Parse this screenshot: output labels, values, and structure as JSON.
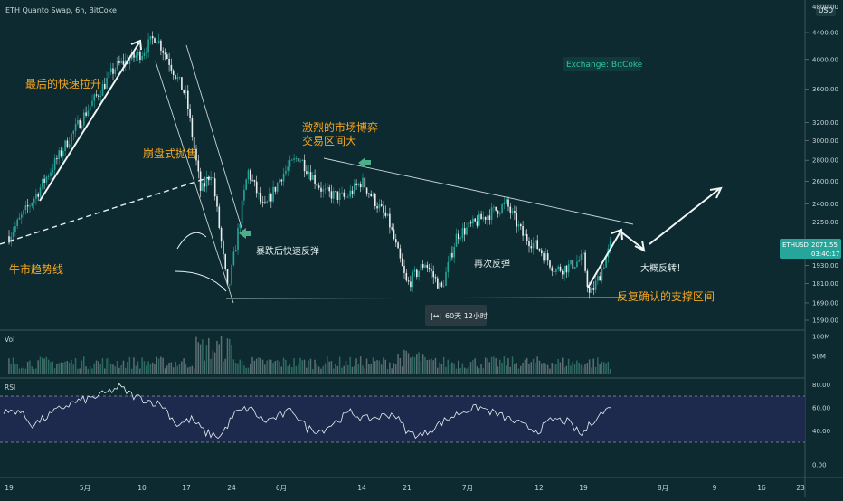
{
  "header": {
    "title": "ETH Quanto Swap, 6h, BitCoke",
    "currency_badge": "USD"
  },
  "watermark": "Exchange: BitCoke",
  "price_tag": {
    "symbol": "ETHUSD",
    "price": "2071.55",
    "countdown": "03:40:17",
    "color": "#26a69a"
  },
  "measure_badge": "60天 12小时",
  "annotations": {
    "final_rally": "最后的快速拉升",
    "crash_sell": "崩盘式抛售",
    "bull_trendline": "牛市趋势线",
    "fierce_game_1": "激烈的市场博弈",
    "fierce_game_2": "交易区间大",
    "rebound_after_crash": "暴跌后快速反弹",
    "rebound_again": "再次反弹",
    "support_zone": "反复确认的支撑区间",
    "likely_reversal": "大概反转！"
  },
  "panels": {
    "volume_label": "Vol",
    "rsi_label": "RSI"
  },
  "colors": {
    "background": "#0c2a2f",
    "up": "#26a69a",
    "down": "#e9eef0",
    "annotation": "#f5a623",
    "rsi_band": "#1d2a4e"
  },
  "chart_data": [
    {
      "type": "candlestick",
      "title": "ETH Quanto Swap, 6h, BitCoke",
      "y_scale": "log",
      "yticks": [
        1590,
        1690,
        1810,
        1930,
        2090,
        2250,
        2400,
        2600,
        2800,
        3000,
        3200,
        3600,
        4000,
        4400
      ],
      "ytick_labels": [
        "1590.00",
        "1690.00",
        "1810.00",
        "1930.00",
        "2090.00",
        "2250.00",
        "2400.00",
        "2600.00",
        "2800.00",
        "3000.00",
        "3200.00",
        "3600.00",
        "4000.00",
        "4400.00"
      ],
      "ytop_label": "4800.00",
      "ylim": [
        1540,
        4800
      ],
      "xticks": [
        "19",
        "5月",
        "10",
        "17",
        "24",
        "6月",
        "14",
        "21",
        "7月",
        "12",
        "19",
        "8月",
        "9",
        "16",
        "23"
      ],
      "last_price": 2071.55,
      "trendlines": [
        {
          "name": "bull trendline",
          "from": [
            "19",
            1960
          ],
          "to": [
            "24",
            2650
          ]
        },
        {
          "name": "descending resistance",
          "from": [
            "6月",
            2840
          ],
          "to": [
            "26",
            2260
          ]
        },
        {
          "name": "support",
          "from": [
            "24",
            1720
          ],
          "to": [
            "26",
            1725
          ]
        }
      ],
      "keypoints": [
        {
          "x": "19",
          "y": 2140
        },
        {
          "x": "25 Apr",
          "y": 2480
        },
        {
          "x": "1 May",
          "y": 2950
        },
        {
          "x": "5月",
          "y": 3300
        },
        {
          "x": "8 May",
          "y": 3900
        },
        {
          "x": "10",
          "y": 4100
        },
        {
          "x": "12 May",
          "y": 4350
        },
        {
          "x": "14 May",
          "y": 4000
        },
        {
          "x": "17",
          "y": 3500
        },
        {
          "x": "19 May",
          "y": 2500
        },
        {
          "x": "21 May",
          "y": 2700
        },
        {
          "x": "23 May",
          "y": 1750
        },
        {
          "x": "26 May",
          "y": 2700
        },
        {
          "x": "29 May",
          "y": 2350
        },
        {
          "x": "6月",
          "y": 2650
        },
        {
          "x": "4 Jun",
          "y": 2840
        },
        {
          "x": "8 Jun",
          "y": 2500
        },
        {
          "x": "11 Jun",
          "y": 2450
        },
        {
          "x": "14",
          "y": 2600
        },
        {
          "x": "18 Jun",
          "y": 2250
        },
        {
          "x": "21",
          "y": 1800
        },
        {
          "x": "24 Jun",
          "y": 1950
        },
        {
          "x": "26 Jun",
          "y": 1770
        },
        {
          "x": "29 Jun",
          "y": 2150
        },
        {
          "x": "7月",
          "y": 2200
        },
        {
          "x": "4 Jul",
          "y": 2300
        },
        {
          "x": "7 Jul",
          "y": 2400
        },
        {
          "x": "10 Jul",
          "y": 2150
        },
        {
          "x": "12",
          "y": 2050
        },
        {
          "x": "15 Jul",
          "y": 1900
        },
        {
          "x": "17 Jul",
          "y": 1920
        },
        {
          "x": "19",
          "y": 1980
        },
        {
          "x": "20 Jul",
          "y": 1730
        },
        {
          "x": "22 Jul",
          "y": 1850
        },
        {
          "x": "23 Jul",
          "y": 2071.55
        }
      ]
    },
    {
      "type": "bar",
      "title": "Vol",
      "yticks": [
        50000000,
        100000000
      ],
      "ytick_labels": [
        "50M",
        "100M"
      ]
    },
    {
      "type": "line",
      "title": "RSI",
      "yticks": [
        0,
        40,
        60,
        80
      ],
      "ytick_labels": [
        "0.00",
        "40.00",
        "60.00",
        "80.00"
      ],
      "band": [
        30,
        70
      ],
      "values": [
        55,
        58,
        45,
        52,
        60,
        65,
        68,
        72,
        78,
        70,
        66,
        62,
        45,
        50,
        38,
        35,
        55,
        60,
        48,
        52,
        58,
        42,
        40,
        48,
        56,
        50,
        52,
        55,
        38,
        36,
        45,
        52,
        58,
        60,
        55,
        50,
        44,
        40,
        50,
        48,
        36,
        52,
        60
      ]
    }
  ]
}
